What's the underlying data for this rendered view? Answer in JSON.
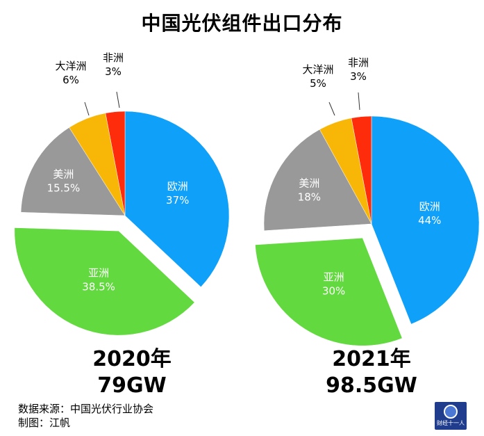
{
  "title": "中国光伏组件出口分布",
  "colors": {
    "europe": "#0FA0FA",
    "asia": "#62D93E",
    "america": "#999999",
    "oceania": "#F8B606",
    "africa": "#FF2C0B",
    "text_dark": "#000000",
    "text_light": "#ffffff"
  },
  "chart_data": [
    {
      "type": "pie",
      "year_label": "2020年",
      "total_label": "79GW",
      "slices": [
        {
          "name": "欧洲",
          "value": 37,
          "label": "37%",
          "color": "#0FA0FA",
          "label_color": "#ffffff"
        },
        {
          "name": "亚洲",
          "value": 38.5,
          "label": "38.5%",
          "color": "#62D93E",
          "label_color": "#ffffff"
        },
        {
          "name": "美洲",
          "value": 15.5,
          "label": "15.5%",
          "color": "#999999",
          "label_color": "#ffffff"
        },
        {
          "name": "大洋洲",
          "value": 6,
          "label": "6%",
          "color": "#F8B606",
          "label_color": "#000000"
        },
        {
          "name": "非洲",
          "value": 3,
          "label": "3%",
          "color": "#FF2C0B",
          "label_color": "#000000"
        }
      ]
    },
    {
      "type": "pie",
      "year_label": "2021年",
      "total_label": "98.5GW",
      "slices": [
        {
          "name": "欧洲",
          "value": 44,
          "label": "44%",
          "color": "#0FA0FA",
          "label_color": "#ffffff"
        },
        {
          "name": "亚洲",
          "value": 30,
          "label": "30%",
          "color": "#62D93E",
          "label_color": "#ffffff"
        },
        {
          "name": "美洲",
          "value": 18,
          "label": "18%",
          "color": "#999999",
          "label_color": "#ffffff"
        },
        {
          "name": "大洋洲",
          "value": 5,
          "label": "5%",
          "color": "#F8B606",
          "label_color": "#000000"
        },
        {
          "name": "非洲",
          "value": 3,
          "label": "3%",
          "color": "#FF2C0B",
          "label_color": "#000000"
        }
      ]
    }
  ],
  "source": {
    "data_source": "数据来源：中国光伏行业协会",
    "author": "制图：江帆"
  },
  "logo": {
    "text": "财经十一人"
  }
}
